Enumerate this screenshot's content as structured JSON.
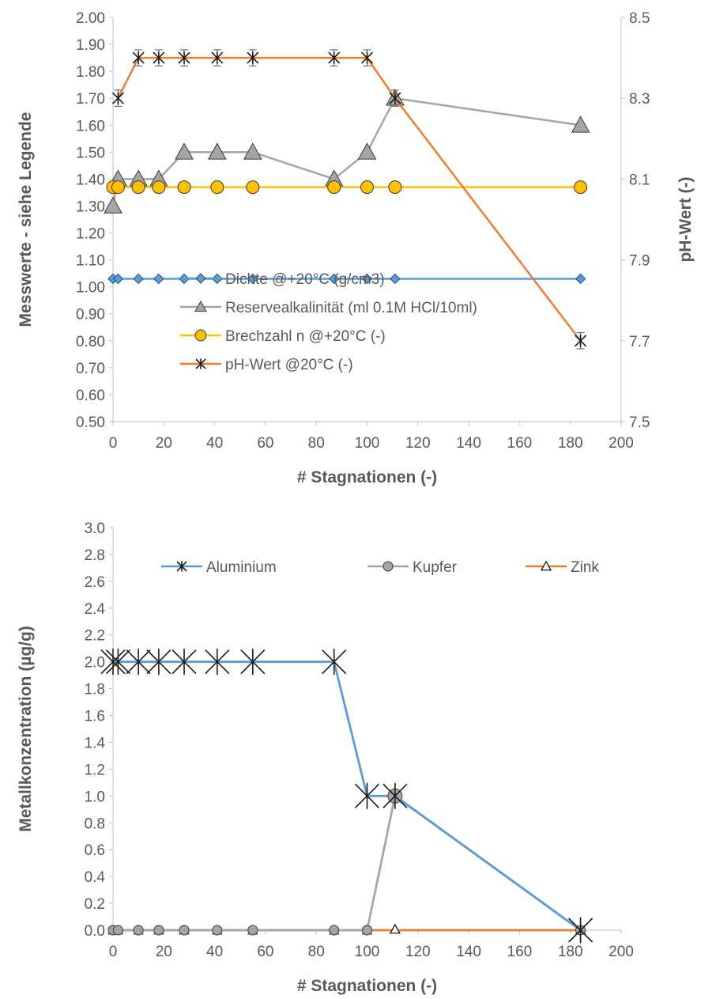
{
  "chart_data": [
    {
      "type": "line",
      "xlabel": "# Stagnationen (-)",
      "ylabel": "Messwerte - siehe Legende",
      "y2label": "pH-Wert (-)",
      "xlim": [
        0,
        200
      ],
      "ylim": [
        0.5,
        2.0
      ],
      "y2lim": [
        7.5,
        8.5
      ],
      "xticks": [
        "0",
        "20",
        "40",
        "60",
        "80",
        "100",
        "120",
        "140",
        "160",
        "180",
        "200"
      ],
      "yticks": [
        "0.50",
        "0.60",
        "0.70",
        "0.80",
        "0.90",
        "1.00",
        "1.10",
        "1.20",
        "1.30",
        "1.40",
        "1.50",
        "1.60",
        "1.70",
        "1.80",
        "1.90",
        "2.00"
      ],
      "y2ticks": [
        "7.5",
        "7.7",
        "7.9",
        "8.1",
        "8.3",
        "8.5"
      ],
      "grid": false,
      "legend": "center-left",
      "series": [
        {
          "name": "Dichte @+20°C (g/cm3)",
          "axis": "left",
          "color": "#5B9BD5",
          "marker": "diamond",
          "x": [
            0,
            2,
            10,
            18,
            28,
            41,
            55,
            87,
            100,
            111,
            184
          ],
          "values": [
            1.03,
            1.03,
            1.03,
            1.03,
            1.03,
            1.03,
            1.03,
            1.03,
            1.03,
            1.03,
            1.03
          ]
        },
        {
          "name": "Reservealkalinität (ml 0.1M HCl/10ml)",
          "axis": "left",
          "color": "#A5A5A5",
          "marker": "triangle",
          "x": [
            0,
            2,
            10,
            18,
            28,
            41,
            55,
            87,
            100,
            111,
            184
          ],
          "values": [
            1.3,
            1.4,
            1.4,
            1.4,
            1.5,
            1.5,
            1.5,
            1.4,
            1.5,
            1.7,
            1.6
          ]
        },
        {
          "name": "Brechzahl n @+20°C (-)",
          "axis": "left",
          "color": "#FFC000",
          "marker": "circle",
          "x": [
            0,
            2,
            10,
            18,
            28,
            41,
            55,
            87,
            100,
            111,
            184
          ],
          "values": [
            1.37,
            1.37,
            1.37,
            1.37,
            1.37,
            1.37,
            1.37,
            1.37,
            1.37,
            1.37,
            1.37
          ]
        },
        {
          "name": "pH-Wert @20°C (-)",
          "axis": "right",
          "color": "#ED7D31",
          "marker": "star",
          "x": [
            2,
            10,
            18,
            28,
            41,
            55,
            87,
            100,
            111,
            184
          ],
          "values": [
            8.3,
            8.4,
            8.4,
            8.4,
            8.4,
            8.4,
            8.4,
            8.4,
            8.3,
            7.7
          ],
          "error": 0.02
        }
      ]
    },
    {
      "type": "line",
      "xlabel": "# Stagnationen (-)",
      "ylabel": "Metallkonzentration (µg/g)",
      "xlim": [
        0,
        200
      ],
      "ylim": [
        0,
        3.0
      ],
      "xticks": [
        "0",
        "20",
        "40",
        "60",
        "80",
        "100",
        "120",
        "140",
        "160",
        "180",
        "200"
      ],
      "yticks": [
        "0.0",
        "0.2",
        "0.4",
        "0.6",
        "0.8",
        "1.0",
        "1.2",
        "1.4",
        "1.6",
        "1.8",
        "2.0",
        "2.2",
        "2.4",
        "2.6",
        "2.8",
        "3.0"
      ],
      "grid": false,
      "legend": "top",
      "series": [
        {
          "name": "Aluminium",
          "color": "#5B9BD5",
          "marker": "star",
          "x": [
            0,
            2,
            10,
            18,
            28,
            41,
            55,
            87,
            100,
            111,
            184
          ],
          "values": [
            2.0,
            2.0,
            2.0,
            2.0,
            2.0,
            2.0,
            2.0,
            2.0,
            1.0,
            1.0,
            0.0
          ]
        },
        {
          "name": "Kupfer",
          "color": "#A5A5A5",
          "marker": "circle",
          "x": [
            0,
            2,
            10,
            18,
            28,
            41,
            55,
            87,
            100,
            111,
            184
          ],
          "values": [
            0.0,
            0.0,
            0.0,
            0.0,
            0.0,
            0.0,
            0.0,
            0.0,
            0.0,
            1.0,
            0.0
          ]
        },
        {
          "name": "Zink",
          "color": "#ED7D31",
          "marker": "triangle",
          "x": [
            0,
            2,
            10,
            18,
            28,
            41,
            55,
            87,
            100,
            111,
            184
          ],
          "values": [
            0.0,
            0.0,
            0.0,
            0.0,
            0.0,
            0.0,
            0.0,
            0.0,
            0.0,
            0.0,
            0.0
          ]
        }
      ]
    }
  ]
}
